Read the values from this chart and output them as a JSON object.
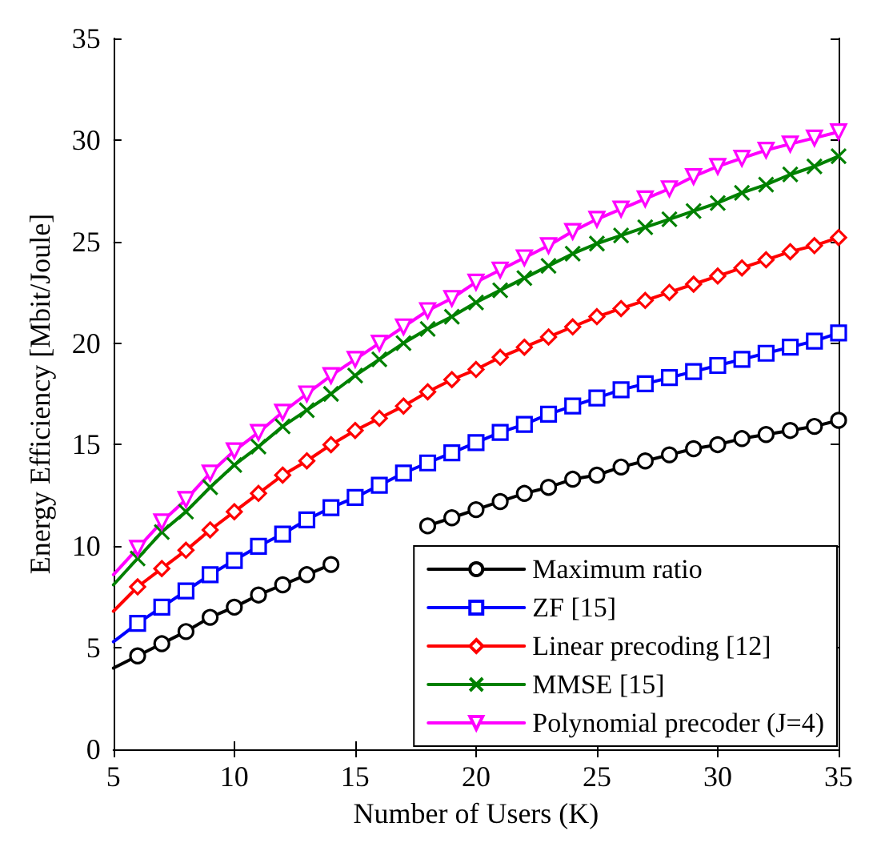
{
  "chart_data": {
    "type": "line",
    "xlabel": "Number of Users (K)",
    "ylabel": "Energy Efficiency [Mbit/Joule]",
    "x": [
      5,
      6,
      7,
      8,
      9,
      10,
      11,
      12,
      13,
      14,
      15,
      16,
      17,
      18,
      19,
      20,
      21,
      22,
      23,
      24,
      25,
      26,
      27,
      28,
      29,
      30,
      31,
      32,
      33,
      34,
      35
    ],
    "xlim": [
      5,
      35
    ],
    "xticks": [
      5,
      10,
      15,
      20,
      25,
      30,
      35
    ],
    "ylim": [
      0,
      35
    ],
    "yticks": [
      0,
      5,
      10,
      15,
      20,
      25,
      30,
      35
    ],
    "grid": false,
    "legend": "bottom right",
    "line_style": "solid",
    "series": [
      {
        "name": "Maximum ratio",
        "color": "#000000",
        "marker": "circle",
        "values": [
          4.0,
          4.6,
          5.2,
          5.8,
          6.5,
          7.0,
          7.6,
          8.1,
          8.6,
          9.1,
          null,
          null,
          null,
          11.0,
          11.4,
          11.8,
          12.2,
          12.6,
          12.9,
          13.3,
          13.5,
          13.9,
          14.2,
          14.5,
          14.8,
          15.0,
          15.3,
          15.5,
          15.7,
          15.9,
          16.2
        ]
      },
      {
        "name": "ZF [15]",
        "color": "#0000ff",
        "marker": "square",
        "values": [
          5.3,
          6.2,
          7.0,
          7.8,
          8.6,
          9.3,
          10.0,
          10.6,
          11.3,
          11.9,
          12.4,
          13.0,
          13.6,
          14.1,
          14.6,
          15.1,
          15.6,
          16.0,
          16.5,
          16.9,
          17.3,
          17.7,
          18.0,
          18.3,
          18.6,
          18.9,
          19.2,
          19.5,
          19.8,
          20.1,
          20.5
        ]
      },
      {
        "name": "Linear precoding [12]",
        "color": "#ff0000",
        "marker": "diamond",
        "values": [
          6.8,
          8.0,
          8.9,
          9.8,
          10.8,
          11.7,
          12.6,
          13.5,
          14.2,
          15.0,
          15.7,
          16.3,
          16.9,
          17.6,
          18.2,
          18.7,
          19.3,
          19.8,
          20.3,
          20.8,
          21.3,
          21.7,
          22.1,
          22.5,
          22.9,
          23.3,
          23.7,
          24.1,
          24.5,
          24.8,
          25.2
        ]
      },
      {
        "name": "MMSE [15]",
        "color": "#008000",
        "marker": "cross",
        "values": [
          8.1,
          9.4,
          10.7,
          11.7,
          12.9,
          14.0,
          14.9,
          15.9,
          16.7,
          17.5,
          18.4,
          19.2,
          20.0,
          20.7,
          21.3,
          22.0,
          22.6,
          23.2,
          23.8,
          24.4,
          24.9,
          25.3,
          25.7,
          26.1,
          26.5,
          26.9,
          27.4,
          27.8,
          28.3,
          28.7,
          29.2
        ]
      },
      {
        "name": "Polynomial precoder (J=4)",
        "color": "#ff00ff",
        "marker": "triangle",
        "values": [
          8.6,
          9.9,
          11.2,
          12.3,
          13.6,
          14.7,
          15.6,
          16.6,
          17.5,
          18.4,
          19.2,
          20.0,
          20.8,
          21.6,
          22.2,
          23.0,
          23.6,
          24.2,
          24.8,
          25.5,
          26.1,
          26.6,
          27.1,
          27.6,
          28.2,
          28.7,
          29.1,
          29.5,
          29.8,
          30.1,
          30.4
        ]
      }
    ]
  }
}
